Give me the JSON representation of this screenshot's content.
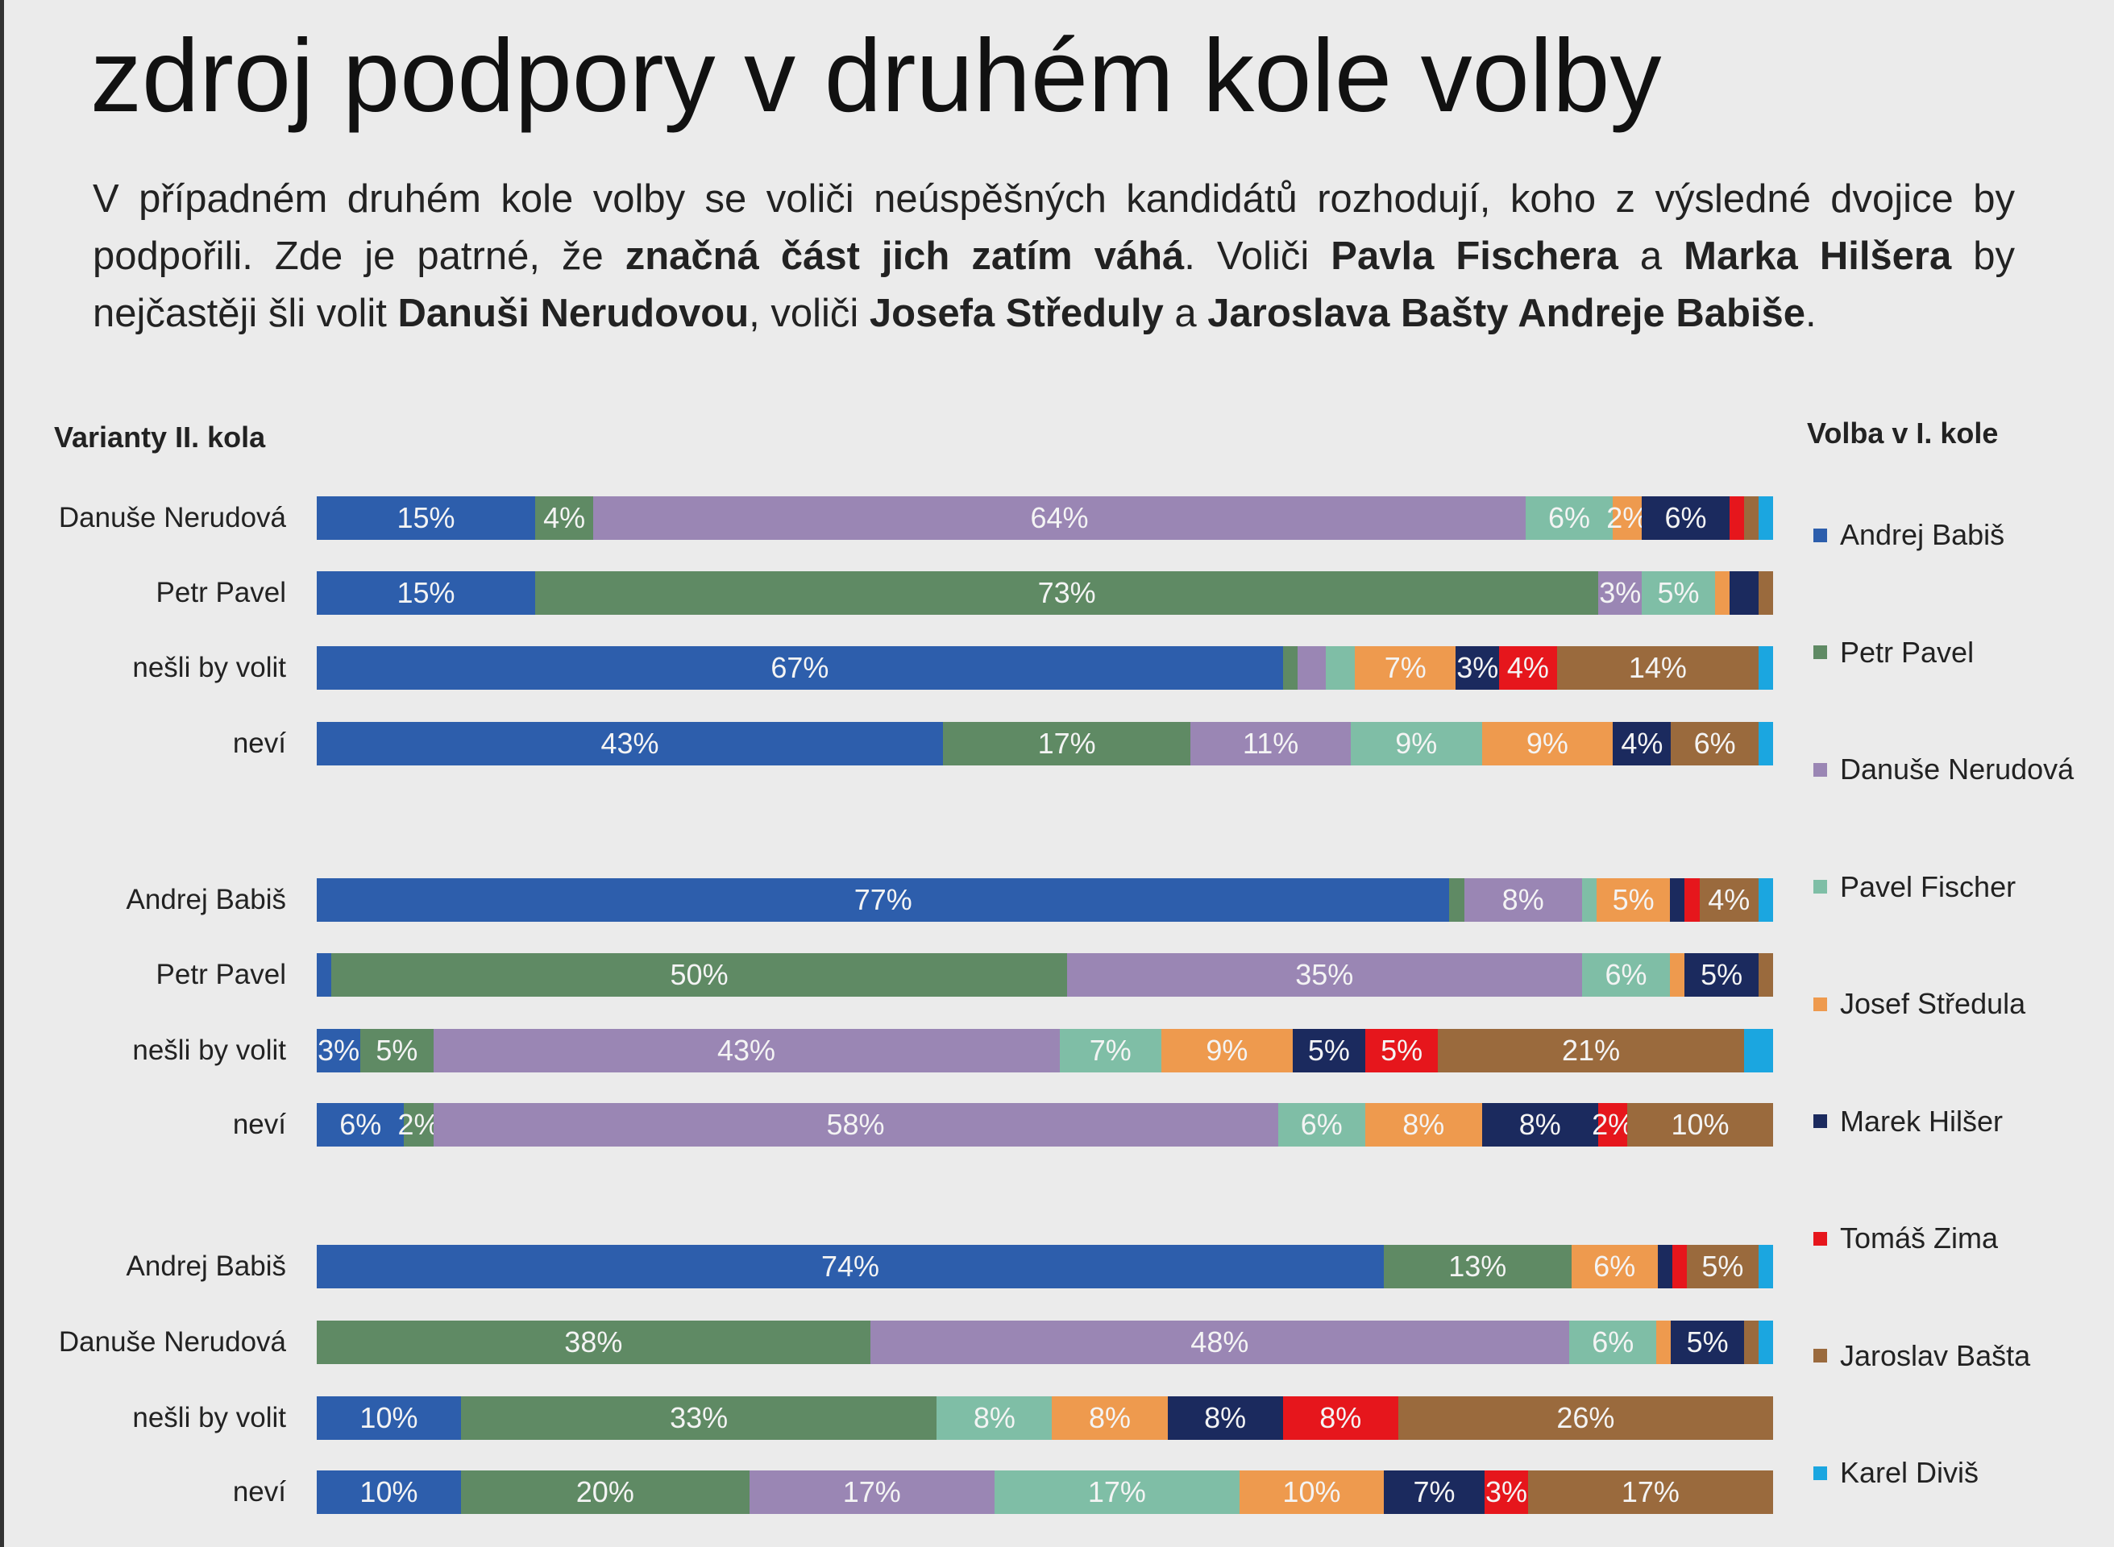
{
  "title": "zdroj podpory v druhém kole volby",
  "intro": [
    {
      "t": "V případném druhém kole volby se voliči neúspěšných kandidátů rozhodují, koho z výsledné dvojice by podpořili. Zde je patrné, že ",
      "b": false
    },
    {
      "t": "značná část jich zatím váhá",
      "b": true
    },
    {
      "t": ". Voliči ",
      "b": false
    },
    {
      "t": "Pavla Fischera",
      "b": true
    },
    {
      "t": " a ",
      "b": false
    },
    {
      "t": "Marka Hilšera",
      "b": true
    },
    {
      "t": " by nejčastěji šli volit ",
      "b": false
    },
    {
      "t": "Danuši Nerudovou",
      "b": true
    },
    {
      "t": ", voliči ",
      "b": false
    },
    {
      "t": "Josefa Středuly",
      "b": true
    },
    {
      "t": " a ",
      "b": false
    },
    {
      "t": "Jaroslava Bašty Andreje Babiše",
      "b": true
    },
    {
      "t": ".",
      "b": false
    }
  ],
  "chart_data": {
    "type": "bar",
    "orientation": "horizontal-stacked-100",
    "ylabel": "Varianty II. kola",
    "legend_title": "Volba v I. kole",
    "legend_position": "right",
    "series": [
      {
        "name": "Andrej Babiš",
        "color": "#2d5eac"
      },
      {
        "name": "Petr Pavel",
        "color": "#5f8a64"
      },
      {
        "name": "Danuše Nerudová",
        "color": "#9a86b4"
      },
      {
        "name": "Pavel Fischer",
        "color": "#7fbea6"
      },
      {
        "name": "Josef Středula",
        "color": "#ee9a4e"
      },
      {
        "name": "Marek Hilšer",
        "color": "#1b2a5e"
      },
      {
        "name": "Tomáš Zima",
        "color": "#e6161c"
      },
      {
        "name": "Jaroslav Bašta",
        "color": "#9a6a3d"
      },
      {
        "name": "Karel Diviš",
        "color": "#1ba6e0"
      }
    ],
    "groups": [
      {
        "rows": [
          {
            "category": "Danuše Nerudová",
            "values": [
              15,
              4,
              64,
              6,
              2,
              6,
              1,
              1,
              1
            ],
            "labels": [
              "15%",
              "4%",
              "64%",
              "6%",
              "2%",
              "6%",
              "",
              "",
              ""
            ]
          },
          {
            "category": "Petr Pavel",
            "values": [
              15,
              73,
              3,
              5,
              1,
              2,
              0,
              1,
              0
            ],
            "labels": [
              "15%",
              "73%",
              "3%",
              "5%",
              "",
              "",
              "",
              "",
              ""
            ]
          },
          {
            "category": "nešli by volit",
            "values": [
              67,
              1,
              2,
              2,
              7,
              3,
              4,
              14,
              1
            ],
            "labels": [
              "67%",
              "",
              "",
              "",
              "7%",
              "3%",
              "4%",
              "14%",
              ""
            ]
          },
          {
            "category": "neví",
            "values": [
              43,
              17,
              11,
              9,
              9,
              4,
              0,
              6,
              1
            ],
            "labels": [
              "43%",
              "17%",
              "11%",
              "9%",
              "9%",
              "4%",
              "",
              "6%",
              ""
            ]
          }
        ]
      },
      {
        "rows": [
          {
            "category": "Andrej Babiš",
            "values": [
              77,
              1,
              8,
              1,
              5,
              1,
              1,
              4,
              1
            ],
            "labels": [
              "77%",
              "",
              "8%",
              "",
              "5%",
              "",
              "",
              "4%",
              ""
            ]
          },
          {
            "category": "Petr Pavel",
            "values": [
              1,
              50,
              35,
              6,
              1,
              5,
              0,
              1,
              0
            ],
            "labels": [
              "",
              "50%",
              "35%",
              "6%",
              "",
              "5%",
              "",
              "",
              ""
            ]
          },
          {
            "category": "nešli by volit",
            "values": [
              3,
              5,
              43,
              7,
              9,
              5,
              5,
              21,
              2
            ],
            "labels": [
              "3%",
              "5%",
              "43%",
              "7%",
              "9%",
              "5%",
              "5%",
              "21%",
              ""
            ]
          },
          {
            "category": "neví",
            "values": [
              6,
              2,
              58,
              6,
              8,
              8,
              2,
              10,
              0
            ],
            "labels": [
              "6%",
              "2%",
              "58%",
              "6%",
              "8%",
              "8%",
              "2%",
              "10%",
              ""
            ]
          }
        ]
      },
      {
        "rows": [
          {
            "category": "Andrej Babiš",
            "values": [
              74,
              13,
              0,
              0,
              6,
              1,
              1,
              5,
              1
            ],
            "labels": [
              "74%",
              "13%",
              "",
              "",
              "6%",
              "",
              "",
              "5%",
              ""
            ]
          },
          {
            "category": "Danuše Nerudová",
            "values": [
              0,
              38,
              48,
              6,
              1,
              5,
              0,
              1,
              1
            ],
            "labels": [
              "",
              "38%",
              "48%",
              "6%",
              "",
              "5%",
              "",
              "",
              ""
            ]
          },
          {
            "category": "nešli by volit",
            "values": [
              10,
              33,
              0,
              8,
              8,
              8,
              8,
              26,
              0
            ],
            "labels": [
              "10%",
              "33%",
              "",
              "8%",
              "8%",
              "8%",
              "8%",
              "26%",
              ""
            ]
          },
          {
            "category": "neví",
            "values": [
              10,
              20,
              17,
              17,
              10,
              7,
              3,
              17,
              0
            ],
            "labels": [
              "10%",
              "20%",
              "17%",
              "17%",
              "10%",
              "7%",
              "3%",
              "17%",
              ""
            ]
          }
        ]
      }
    ],
    "xlim": [
      0,
      100
    ]
  }
}
